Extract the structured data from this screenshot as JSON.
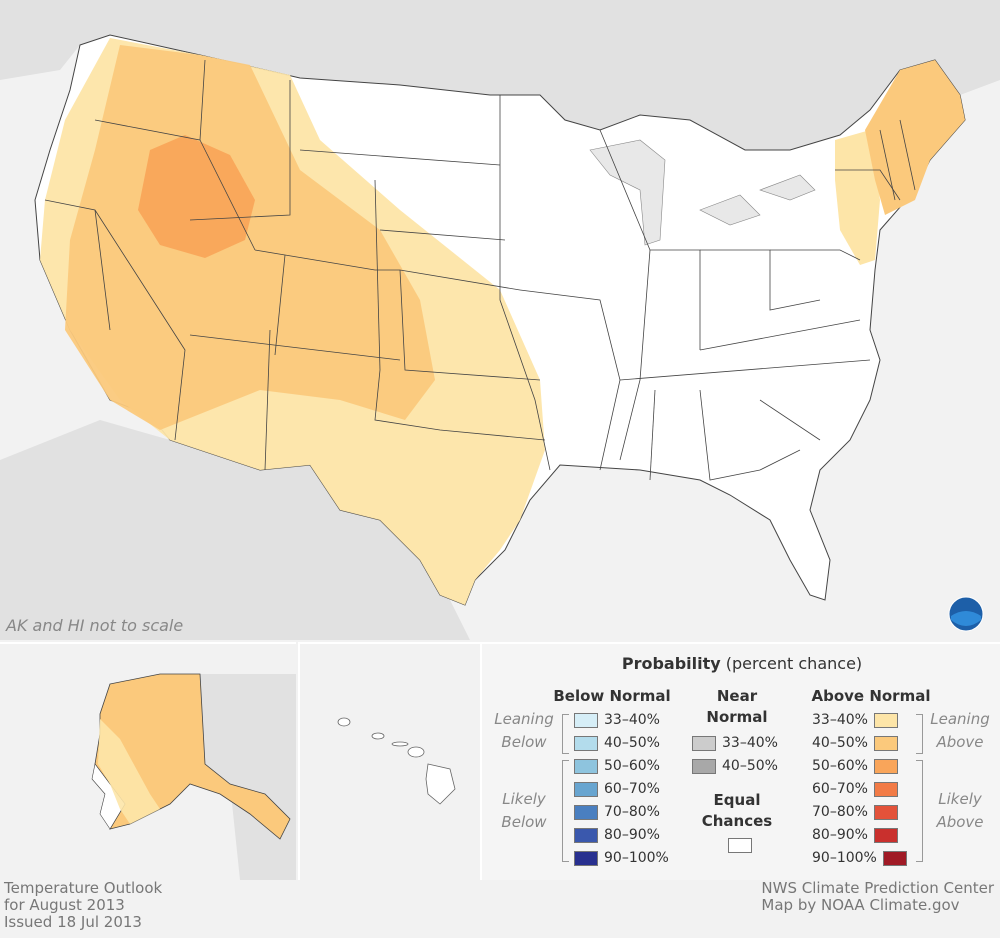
{
  "map": {
    "note": "AK and HI not to scale",
    "logo_label": "NOAA"
  },
  "legend": {
    "title_bold": "Probability",
    "title_rest": " (percent chance)",
    "below": {
      "header": "Below Normal",
      "leaning": [
        "Leaning",
        "Below"
      ],
      "likely": [
        "Likely",
        "Below"
      ],
      "rows": [
        {
          "label": "33–40%",
          "color": "#d6eef7"
        },
        {
          "label": "40–50%",
          "color": "#b3dcec"
        },
        {
          "label": "50–60%",
          "color": "#8ec4de"
        },
        {
          "label": "60–70%",
          "color": "#68a5d0"
        },
        {
          "label": "70–80%",
          "color": "#4a7fc0"
        },
        {
          "label": "80–90%",
          "color": "#3a58ad"
        },
        {
          "label": "90–100%",
          "color": "#28308f"
        }
      ]
    },
    "near": {
      "header": [
        "Near",
        "Normal"
      ],
      "rows": [
        {
          "label": "33–40%",
          "color": "#cccccc"
        },
        {
          "label": "40–50%",
          "color": "#a8a8a8"
        }
      ],
      "equal_header": [
        "Equal",
        "Chances"
      ],
      "equal_color": "#ffffff"
    },
    "above": {
      "header": "Above Normal",
      "leaning": [
        "Leaning",
        "Above"
      ],
      "likely": [
        "Likely",
        "Above"
      ],
      "rows": [
        {
          "label": "33–40%",
          "color": "#fde5a8"
        },
        {
          "label": "40–50%",
          "color": "#fbc97c"
        },
        {
          "label": "50–60%",
          "color": "#f9a55a"
        },
        {
          "label": "60–70%",
          "color": "#f27b46"
        },
        {
          "label": "70–80%",
          "color": "#e3523a"
        },
        {
          "label": "80–90%",
          "color": "#c9302d"
        },
        {
          "label": "90–100%",
          "color": "#a01a25"
        }
      ]
    }
  },
  "footer": {
    "left": [
      "Temperature Outlook",
      "for August 2013",
      "Issued 18 Jul 2013"
    ],
    "right": [
      "NWS Climate Prediction Center",
      "Map by NOAA Climate.gov"
    ]
  }
}
